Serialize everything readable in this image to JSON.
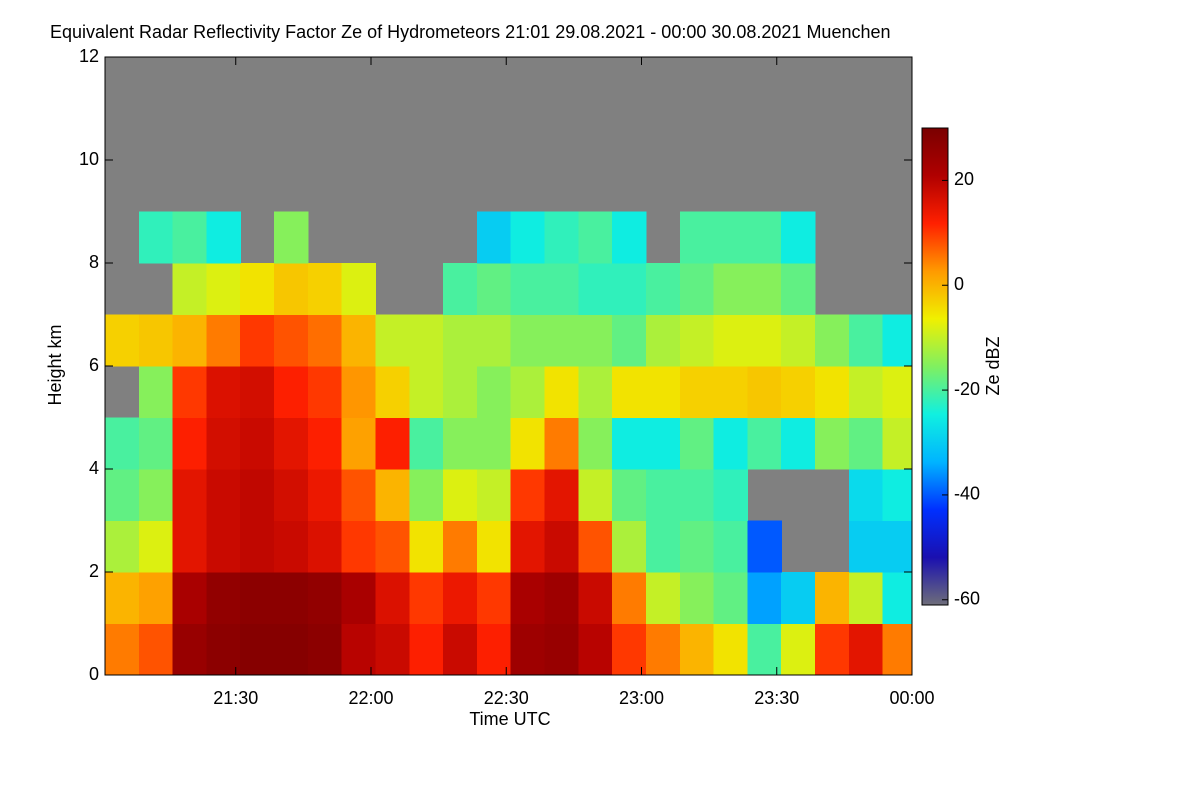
{
  "chart_data": {
    "type": "heatmap",
    "title": "Equivalent Radar Reflectivity Factor Ze of Hydrometeors   21:01 29.08.2021 - 00:00 30.08.2021 Muenchen",
    "x_label": "Time UTC",
    "y_label": "Height km",
    "colorbar_label": "Ze dBZ",
    "x": [
      21.079,
      21.204,
      21.329,
      21.454,
      21.579,
      21.704,
      21.829,
      21.954,
      22.079,
      22.204,
      22.329,
      22.454,
      22.579,
      22.704,
      22.829,
      22.954,
      23.079,
      23.204,
      23.329,
      23.454,
      23.579,
      23.704,
      23.829,
      23.954
    ],
    "y": [
      0.5,
      1.5,
      2.5,
      3.5,
      4.5,
      5.5,
      6.5,
      7.5,
      8.5
    ],
    "values": [
      [
        5,
        8,
        25,
        27,
        28,
        28,
        27,
        20,
        18,
        12,
        18,
        12,
        24,
        25,
        20,
        10,
        5,
        0,
        -5,
        -20,
        -8,
        10,
        15,
        5
      ],
      [
        0,
        2,
        22,
        26,
        27,
        27,
        26,
        22,
        16,
        10,
        14,
        10,
        22,
        24,
        18,
        5,
        -10,
        -15,
        -18,
        -35,
        -30,
        0,
        -10,
        -25
      ],
      [
        -12,
        -8,
        15,
        18,
        19,
        18,
        16,
        10,
        8,
        -5,
        5,
        -5,
        15,
        18,
        8,
        -12,
        -20,
        -18,
        -20,
        -40,
        null,
        null,
        -30,
        -30
      ],
      [
        -18,
        -15,
        15,
        18,
        19,
        17,
        14,
        8,
        0,
        -15,
        -8,
        -10,
        10,
        15,
        -10,
        -18,
        -20,
        -20,
        -22,
        null,
        null,
        null,
        -28,
        -25
      ],
      [
        -20,
        -18,
        12,
        17,
        18,
        15,
        12,
        2,
        12,
        -20,
        -15,
        -15,
        -5,
        5,
        -15,
        -25,
        -25,
        -18,
        -25,
        -20,
        -25,
        -15,
        -18,
        -10
      ],
      [
        null,
        -15,
        10,
        16,
        17,
        12,
        10,
        3,
        -3,
        -10,
        -12,
        -15,
        -12,
        -5,
        -12,
        -5,
        -5,
        -3,
        -3,
        -2,
        -3,
        -5,
        -10,
        -8
      ],
      [
        -3,
        -2,
        0,
        5,
        10,
        8,
        6,
        0,
        -10,
        -10,
        -12,
        -12,
        -15,
        -15,
        -15,
        -18,
        -12,
        -10,
        -8,
        -8,
        -10,
        -15,
        -20,
        -25
      ],
      [
        null,
        null,
        -10,
        -8,
        -5,
        -2,
        -3,
        -8,
        null,
        null,
        -20,
        -18,
        -20,
        -20,
        -22,
        -22,
        -20,
        -18,
        -15,
        -15,
        -18,
        null,
        null,
        null
      ],
      [
        null,
        -22,
        -20,
        -25,
        null,
        -15,
        null,
        null,
        null,
        null,
        null,
        -30,
        -25,
        -22,
        -20,
        -25,
        null,
        -20,
        -20,
        -20,
        -25,
        null,
        null,
        null
      ]
    ],
    "xlim": [
      21.0167,
      24.0
    ],
    "xticks": [
      {
        "value": 21.5,
        "label": "21:30"
      },
      {
        "value": 22.0,
        "label": "22:00"
      },
      {
        "value": 22.5,
        "label": "22:30"
      },
      {
        "value": 23.0,
        "label": "23:00"
      },
      {
        "value": 23.5,
        "label": "23:30"
      },
      {
        "value": 24.0,
        "label": "00:00"
      }
    ],
    "ylim": [
      0,
      12
    ],
    "yticks": [
      0,
      2,
      4,
      6,
      8,
      10,
      12
    ],
    "zlim": [
      -61,
      30
    ],
    "zticks": [
      20,
      0,
      -20,
      -40,
      -60
    ],
    "colormap": [
      "#6e6e7a",
      "#1a10b0",
      "#0030ff",
      "#00b4ff",
      "#10f0e0",
      "#80f060",
      "#f0f000",
      "#ff9a00",
      "#ff2000",
      "#b00000",
      "#7a0000"
    ],
    "nodata_color": "#808080"
  }
}
